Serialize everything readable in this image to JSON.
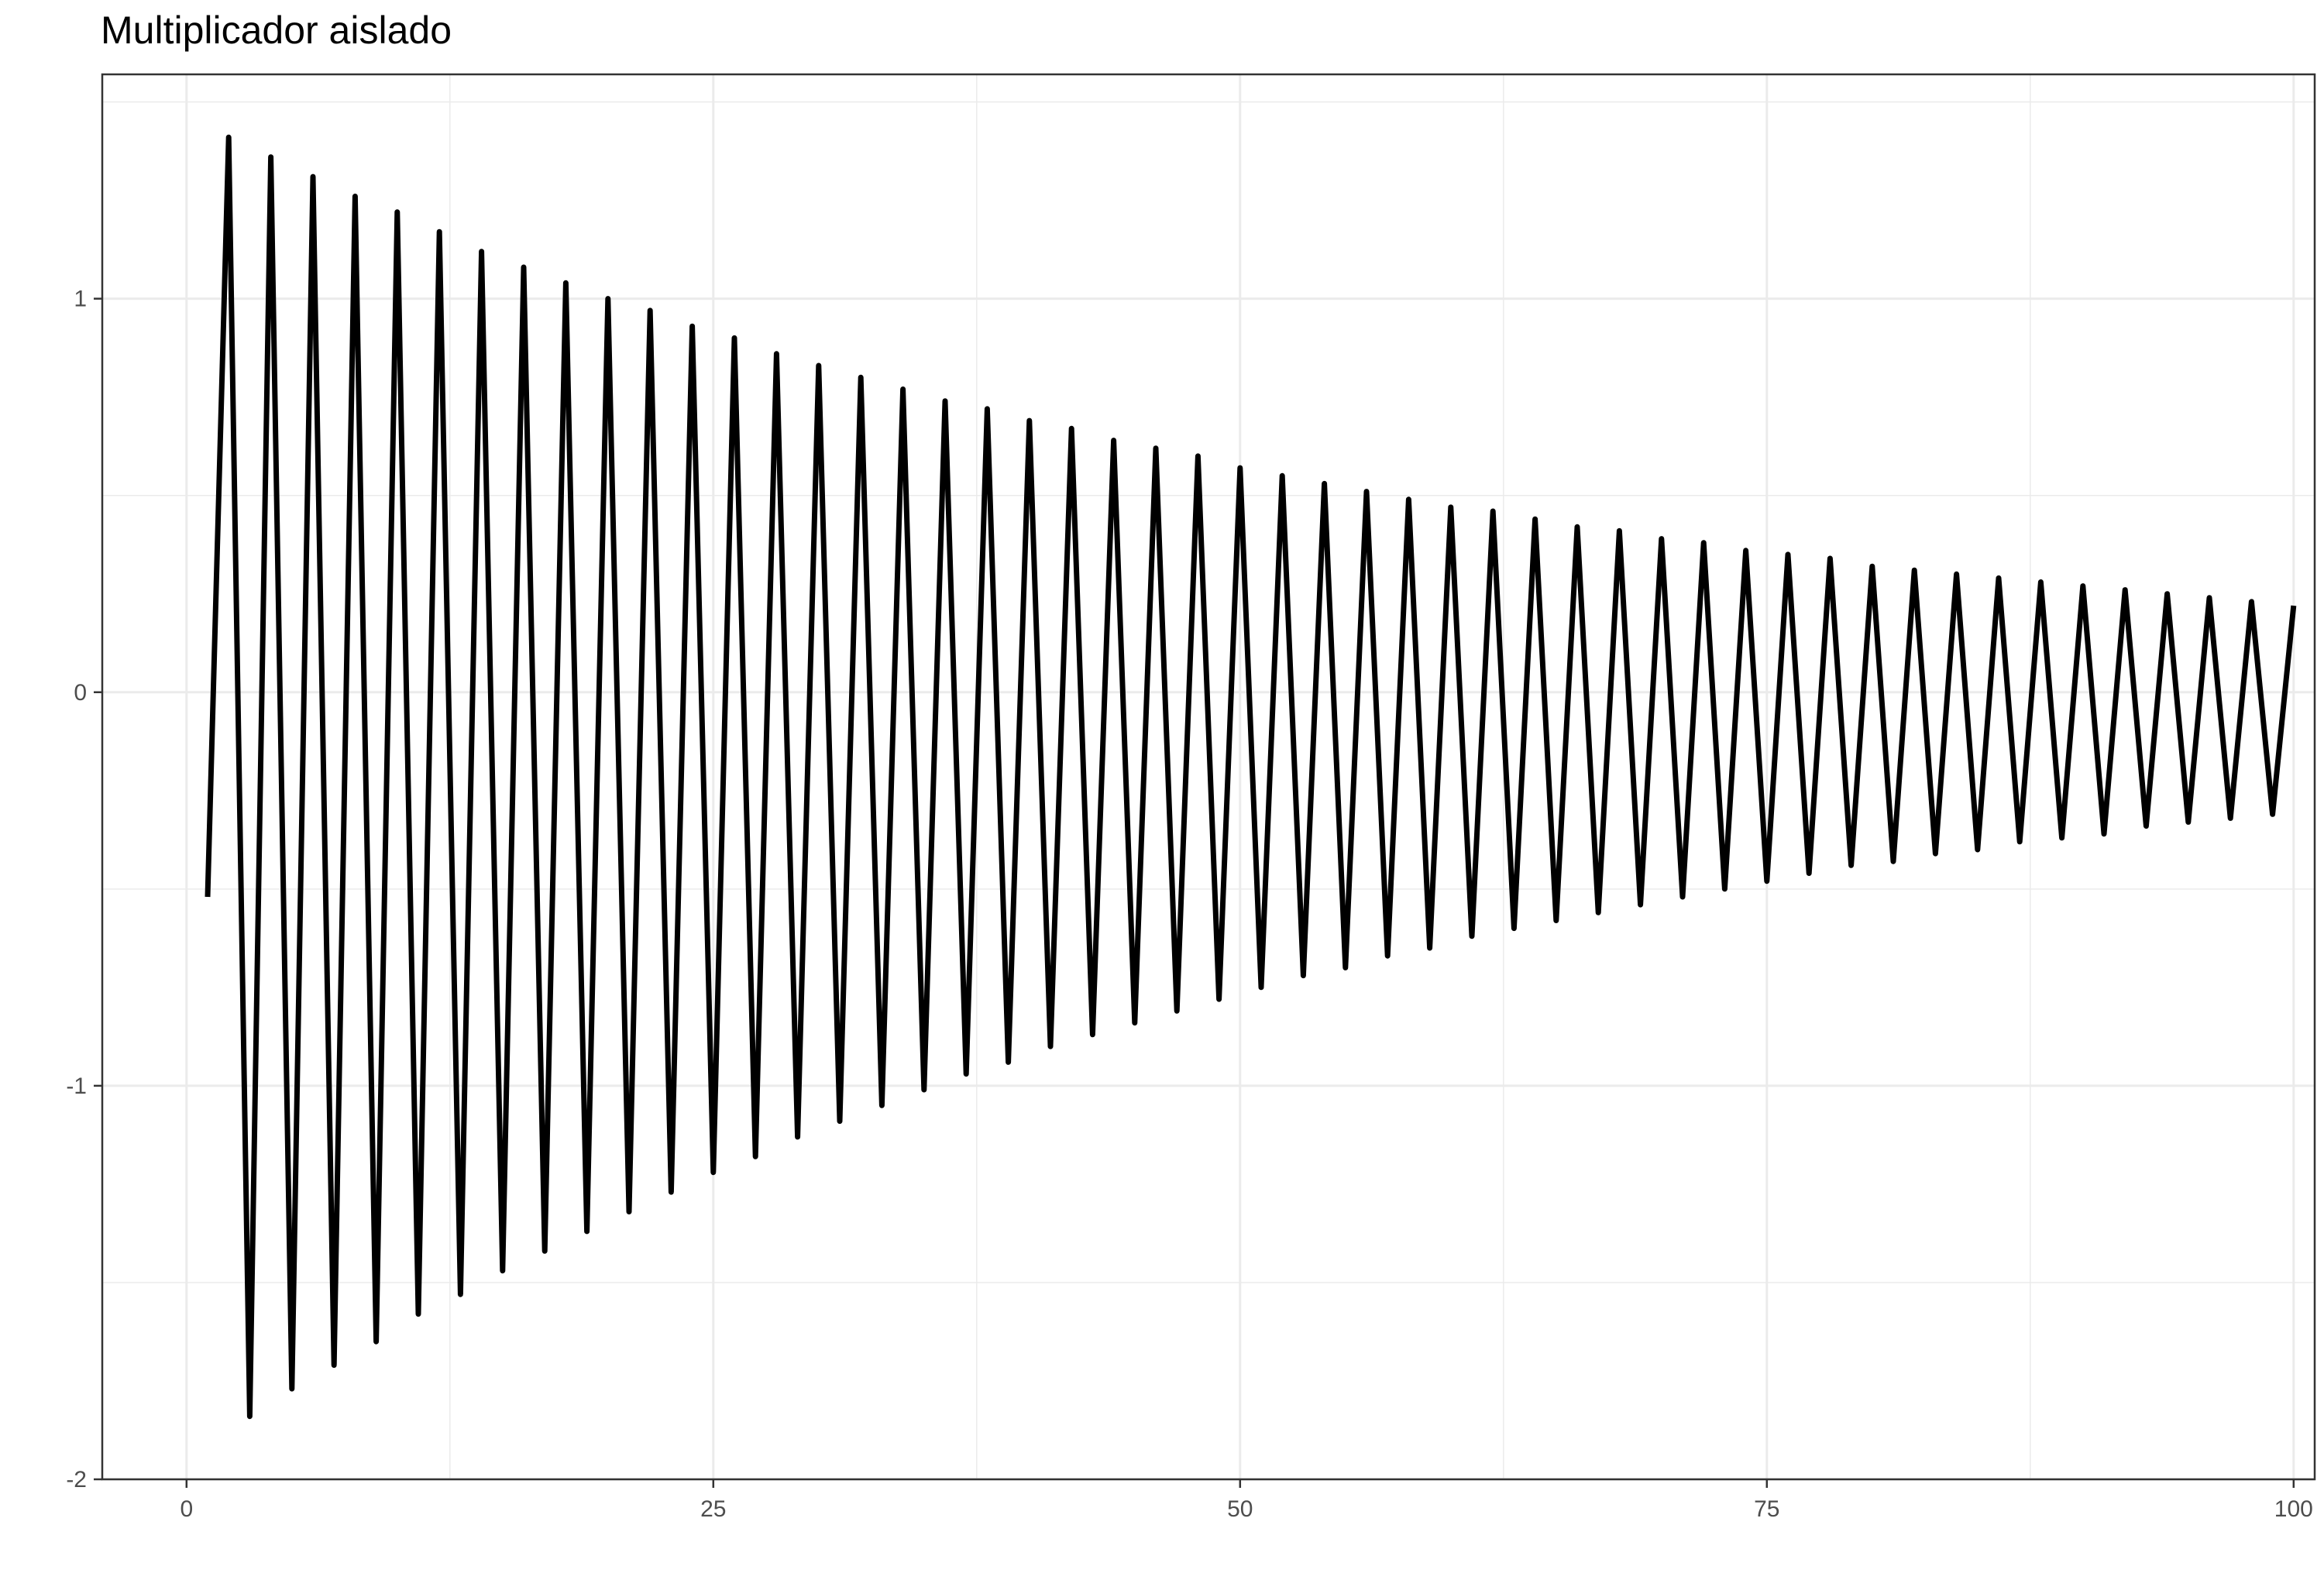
{
  "chart_data": {
    "type": "line",
    "title": "Multiplicador aislado",
    "xlabel": "",
    "ylabel": "",
    "xlim": [
      -4,
      101
    ],
    "ylim": [
      -2,
      1.57
    ],
    "x_ticks": [
      0,
      25,
      50,
      75,
      100
    ],
    "x_tick_labels": [
      "0",
      "25",
      "50",
      "75",
      "100"
    ],
    "y_ticks": [
      -2,
      -1,
      0,
      1
    ],
    "y_tick_labels": [
      "-2",
      "-1",
      "0",
      "1"
    ],
    "grid": true,
    "legend": "none",
    "line_color": "#000000",
    "series": [
      {
        "x": [
          1,
          2,
          3,
          4,
          5,
          6,
          7,
          8,
          9,
          10,
          11,
          12,
          13,
          14,
          15,
          16,
          17,
          18,
          19,
          20,
          21,
          22,
          23,
          24,
          25,
          26,
          27,
          28,
          29,
          30,
          31,
          32,
          33,
          34,
          35,
          36,
          37,
          38,
          39,
          40,
          41,
          42,
          43,
          44,
          45,
          46,
          47,
          48,
          49,
          50,
          51,
          52,
          53,
          54,
          55,
          56,
          57,
          58,
          59,
          60,
          61,
          62,
          63,
          64,
          65,
          66,
          67,
          68,
          69,
          70,
          71,
          72,
          73,
          74,
          75,
          76,
          77,
          78,
          79,
          80,
          81,
          82,
          83,
          84,
          85,
          86,
          87,
          88,
          89,
          90,
          91,
          92,
          93,
          94,
          95,
          96,
          97,
          98,
          99,
          100
        ],
        "values": [
          -0.52,
          1.41,
          -1.84,
          1.36,
          -1.77,
          1.31,
          -1.71,
          1.26,
          -1.65,
          1.22,
          -1.58,
          1.17,
          -1.53,
          1.12,
          -1.47,
          1.08,
          -1.42,
          1.04,
          -1.37,
          1.0,
          -1.32,
          0.97,
          -1.27,
          0.93,
          -1.22,
          0.9,
          -1.18,
          0.86,
          -1.13,
          0.83,
          -1.09,
          0.8,
          -1.05,
          0.77,
          -1.01,
          0.74,
          -0.97,
          0.72,
          -0.94,
          0.69,
          -0.9,
          0.67,
          -0.87,
          0.64,
          -0.84,
          0.62,
          -0.81,
          0.6,
          -0.78,
          0.57,
          -0.75,
          0.55,
          -0.72,
          0.53,
          -0.7,
          0.51,
          -0.67,
          0.49,
          -0.65,
          0.47,
          -0.62,
          0.46,
          -0.6,
          0.44,
          -0.58,
          0.42,
          -0.56,
          0.41,
          -0.54,
          0.39,
          -0.52,
          0.38,
          -0.5,
          0.36,
          -0.48,
          0.35,
          -0.46,
          0.34,
          -0.44,
          0.32,
          -0.43,
          0.31,
          -0.41,
          0.3,
          -0.4,
          0.29,
          -0.38,
          0.28,
          -0.37,
          0.27,
          -0.36,
          0.26,
          -0.34,
          0.25,
          -0.33,
          0.24,
          -0.32,
          0.23,
          -0.31,
          0.22
        ]
      }
    ]
  }
}
